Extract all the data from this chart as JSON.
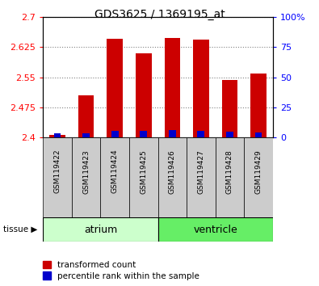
{
  "title": "GDS3625 / 1369195_at",
  "samples": [
    "GSM119422",
    "GSM119423",
    "GSM119424",
    "GSM119425",
    "GSM119426",
    "GSM119427",
    "GSM119428",
    "GSM119429"
  ],
  "red_values": [
    2.406,
    2.505,
    2.645,
    2.61,
    2.648,
    2.643,
    2.543,
    2.56
  ],
  "blue_values": [
    3.0,
    3.5,
    5.0,
    5.5,
    6.0,
    5.0,
    4.5,
    4.0
  ],
  "ylim_left": [
    2.4,
    2.7
  ],
  "ylim_right": [
    0,
    100
  ],
  "yticks_left": [
    2.4,
    2.475,
    2.55,
    2.625,
    2.7
  ],
  "yticks_right": [
    0,
    25,
    50,
    75,
    100
  ],
  "bar_width": 0.55,
  "red_color": "#cc0000",
  "blue_color": "#0000cc",
  "base_value": 2.4,
  "atrium_color": "#ccffcc",
  "ventricle_color": "#66ee66",
  "gray_color": "#cccccc",
  "legend_red": "transformed count",
  "legend_blue": "percentile rank within the sample"
}
